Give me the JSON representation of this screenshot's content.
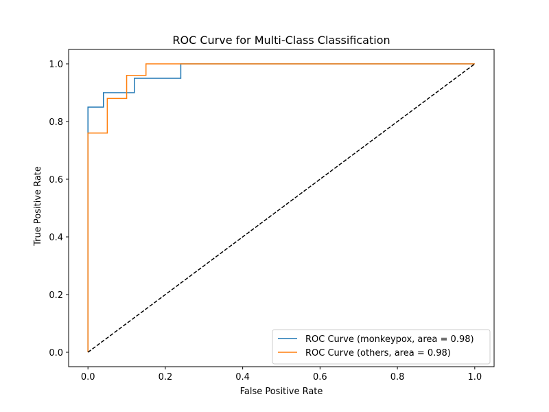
{
  "chart_data": {
    "type": "line",
    "title": "ROC Curve for Multi-Class Classification",
    "xlabel": "False Positive Rate",
    "ylabel": "True Positive Rate",
    "xlim": [
      -0.05,
      1.05
    ],
    "ylim": [
      -0.05,
      1.05
    ],
    "xticks": [
      0.0,
      0.2,
      0.4,
      0.6,
      0.8,
      1.0
    ],
    "yticks": [
      0.0,
      0.2,
      0.4,
      0.6,
      0.8,
      1.0
    ],
    "xtick_labels": [
      "0.0",
      "0.2",
      "0.4",
      "0.6",
      "0.8",
      "1.0"
    ],
    "ytick_labels": [
      "0.0",
      "0.2",
      "0.4",
      "0.6",
      "0.8",
      "1.0"
    ],
    "grid": false,
    "legend_position": "lower-right",
    "series": [
      {
        "name": "ROC Curve (monkeypox, area = 0.98)",
        "color": "#1f77b4",
        "line_style": "solid",
        "points": [
          [
            0.0,
            0.0
          ],
          [
            0.0,
            0.85
          ],
          [
            0.04,
            0.85
          ],
          [
            0.04,
            0.9
          ],
          [
            0.12,
            0.9
          ],
          [
            0.12,
            0.95
          ],
          [
            0.24,
            0.95
          ],
          [
            0.24,
            1.0
          ],
          [
            1.0,
            1.0
          ]
        ]
      },
      {
        "name": "ROC Curve (others, area = 0.98)",
        "color": "#ff7f0e",
        "line_style": "solid",
        "points": [
          [
            0.0,
            0.0
          ],
          [
            0.0,
            0.76
          ],
          [
            0.05,
            0.76
          ],
          [
            0.05,
            0.88
          ],
          [
            0.1,
            0.88
          ],
          [
            0.1,
            0.96
          ],
          [
            0.15,
            0.96
          ],
          [
            0.15,
            1.0
          ],
          [
            1.0,
            1.0
          ]
        ]
      },
      {
        "name": "",
        "color": "#000000",
        "line_style": "dashed",
        "points": [
          [
            0.0,
            0.0
          ],
          [
            1.0,
            1.0
          ]
        ]
      }
    ]
  }
}
